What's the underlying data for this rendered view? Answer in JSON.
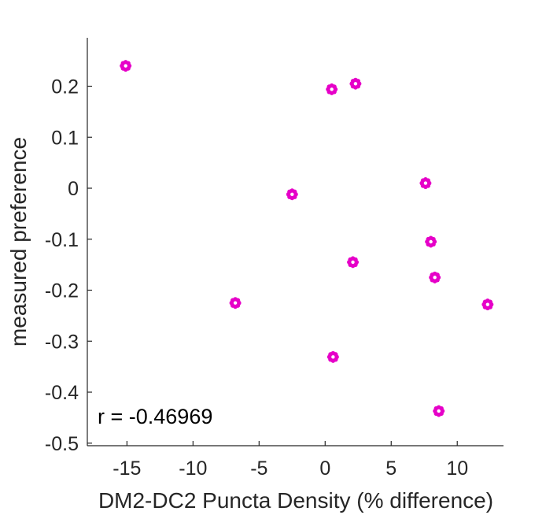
{
  "chart_data": {
    "type": "scatter",
    "title": "",
    "xlabel": "DM2-DC2 Puncta Density (% difference)",
    "ylabel": "measured preference",
    "xlim": [
      -18,
      13.5
    ],
    "ylim": [
      -0.505,
      0.295
    ],
    "xticks": [
      -15,
      -10,
      -5,
      0,
      5,
      10
    ],
    "xtick_labels": [
      "-15",
      "-10",
      "-5",
      "0",
      "5",
      "10"
    ],
    "yticks": [
      0.2,
      0.1,
      0,
      -0.1,
      -0.2,
      -0.3,
      -0.4,
      -0.5
    ],
    "ytick_labels": [
      "0.2",
      "0.1",
      "0",
      "-0.1",
      "-0.2",
      "-0.3",
      "-0.4",
      "-0.5"
    ],
    "grid": false,
    "box": "left-bottom",
    "marker": "flower",
    "marker_color": "#E600C8",
    "annotation": "r = -0.46969",
    "points": [
      {
        "x": -15.1,
        "y": 0.24
      },
      {
        "x": 0.5,
        "y": 0.194
      },
      {
        "x": 2.3,
        "y": 0.205
      },
      {
        "x": -2.5,
        "y": -0.012
      },
      {
        "x": 7.6,
        "y": 0.01
      },
      {
        "x": 8.0,
        "y": -0.105
      },
      {
        "x": 2.1,
        "y": -0.145
      },
      {
        "x": 8.3,
        "y": -0.175
      },
      {
        "x": -6.8,
        "y": -0.225
      },
      {
        "x": 12.3,
        "y": -0.228
      },
      {
        "x": 0.6,
        "y": -0.331
      },
      {
        "x": 8.6,
        "y": -0.437
      }
    ]
  }
}
